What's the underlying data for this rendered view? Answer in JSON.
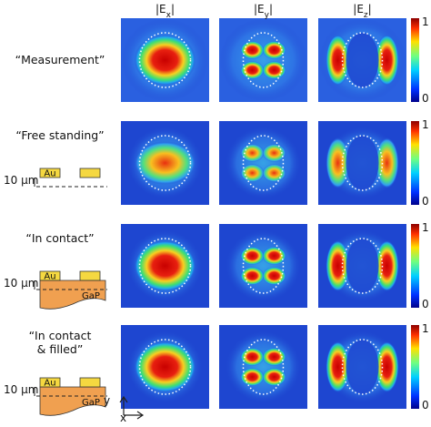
{
  "columns": [
    {
      "left": "|E",
      "sub": "x",
      "right": "|"
    },
    {
      "left": "|E",
      "sub": "y",
      "right": "|"
    },
    {
      "left": "|E",
      "sub": "z",
      "right": "|"
    }
  ],
  "rows": [
    {
      "label": "“Measurement”"
    },
    {
      "label": "“Free standing”",
      "scale": "10 µm",
      "metal": "Au"
    },
    {
      "label": "“In contact”",
      "scale": "10 µm",
      "metal": "Au",
      "substrate": "GaP"
    },
    {
      "label_lines": [
        "“In contact",
        "& filled”"
      ],
      "scale": "10 µm",
      "metal": "Au",
      "substrate": "GaP"
    }
  ],
  "colorbar": {
    "max": "1",
    "min": "0"
  },
  "axes": {
    "x": "x",
    "y": "y"
  }
}
